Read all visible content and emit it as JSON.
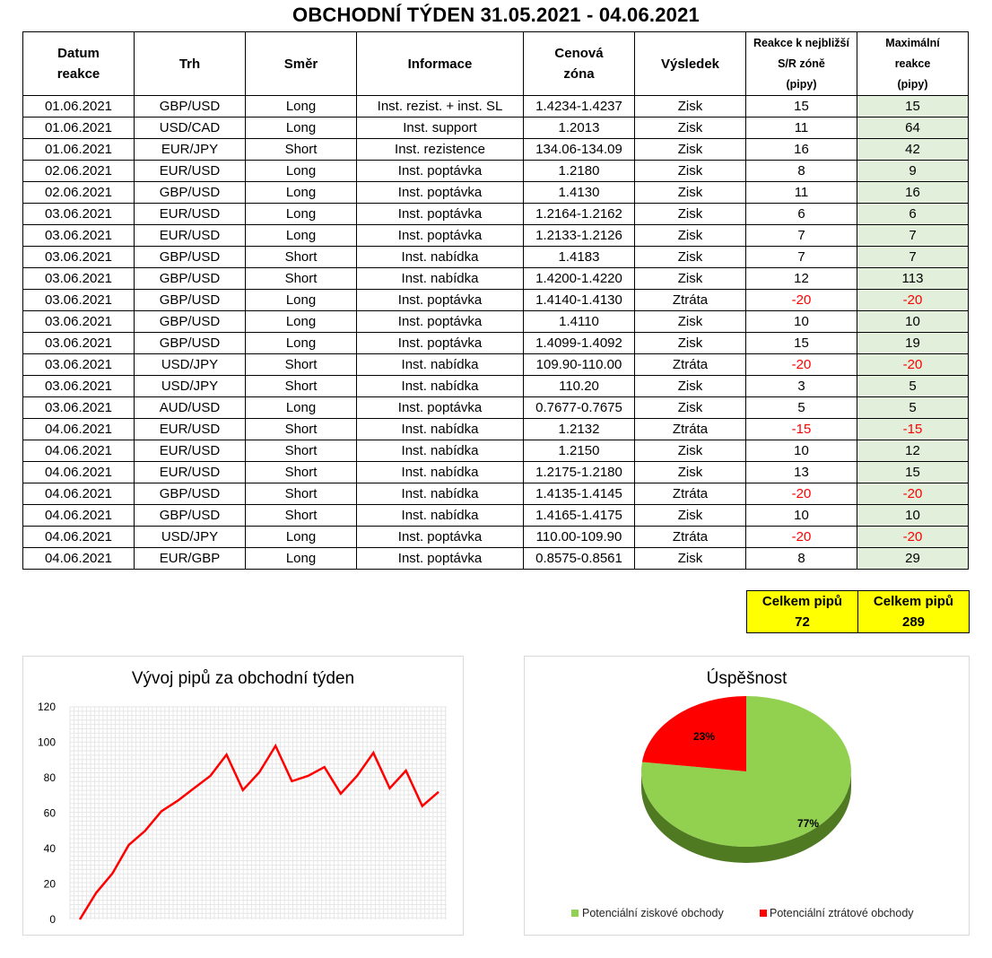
{
  "title": "OBCHODNÍ TÝDEN 31.05.2021 - 04.06.2021",
  "table": {
    "headers": {
      "date": [
        "Datum",
        "reakce"
      ],
      "market": "Trh",
      "direction": "Směr",
      "info": "Informace",
      "zone": [
        "Cenová",
        "zóna"
      ],
      "result": "Výsledek",
      "reaction": [
        "Reakce k nejbližší",
        "S/R zóně",
        "(pipy)"
      ],
      "max": [
        "Maximální",
        "reakce",
        "(pipy)"
      ]
    },
    "rows": [
      [
        "01.06.2021",
        "GBP/USD",
        "Long",
        "Inst. rezist. + inst. SL",
        "1.4234-1.4237",
        "Zisk",
        "15",
        "15"
      ],
      [
        "01.06.2021",
        "USD/CAD",
        "Long",
        "Inst. support",
        "1.2013",
        "Zisk",
        "11",
        "64"
      ],
      [
        "01.06.2021",
        "EUR/JPY",
        "Short",
        "Inst. rezistence",
        "134.06-134.09",
        "Zisk",
        "16",
        "42"
      ],
      [
        "02.06.2021",
        "EUR/USD",
        "Long",
        "Inst. poptávka",
        "1.2180",
        "Zisk",
        "8",
        "9"
      ],
      [
        "02.06.2021",
        "GBP/USD",
        "Long",
        "Inst. poptávka",
        "1.4130",
        "Zisk",
        "11",
        "16"
      ],
      [
        "03.06.2021",
        "EUR/USD",
        "Long",
        "Inst. poptávka",
        "1.2164-1.2162",
        "Zisk",
        "6",
        "6"
      ],
      [
        "03.06.2021",
        "EUR/USD",
        "Long",
        "Inst. poptávka",
        "1.2133-1.2126",
        "Zisk",
        "7",
        "7"
      ],
      [
        "03.06.2021",
        "GBP/USD",
        "Short",
        "Inst. nabídka",
        "1.4183",
        "Zisk",
        "7",
        "7"
      ],
      [
        "03.06.2021",
        "GBP/USD",
        "Short",
        "Inst. nabídka",
        "1.4200-1.4220",
        "Zisk",
        "12",
        "113"
      ],
      [
        "03.06.2021",
        "GBP/USD",
        "Long",
        "Inst. poptávka",
        "1.4140-1.4130",
        "Ztráta",
        "-20",
        "-20"
      ],
      [
        "03.06.2021",
        "GBP/USD",
        "Long",
        "Inst. poptávka",
        "1.4110",
        "Zisk",
        "10",
        "10"
      ],
      [
        "03.06.2021",
        "GBP/USD",
        "Long",
        "Inst. poptávka",
        "1.4099-1.4092",
        "Zisk",
        "15",
        "19"
      ],
      [
        "03.06.2021",
        "USD/JPY",
        "Short",
        "Inst. nabídka",
        "109.90-110.00",
        "Ztráta",
        "-20",
        "-20"
      ],
      [
        "03.06.2021",
        "USD/JPY",
        "Short",
        "Inst. nabídka",
        "110.20",
        "Zisk",
        "3",
        "5"
      ],
      [
        "03.06.2021",
        "AUD/USD",
        "Long",
        "Inst. poptávka",
        "0.7677-0.7675",
        "Zisk",
        "5",
        "5"
      ],
      [
        "04.06.2021",
        "EUR/USD",
        "Short",
        "Inst. nabídka",
        "1.2132",
        "Ztráta",
        "-15",
        "-15"
      ],
      [
        "04.06.2021",
        "EUR/USD",
        "Short",
        "Inst. nabídka",
        "1.2150",
        "Zisk",
        "10",
        "12"
      ],
      [
        "04.06.2021",
        "EUR/USD",
        "Short",
        "Inst. nabídka",
        "1.2175-1.2180",
        "Zisk",
        "13",
        "15"
      ],
      [
        "04.06.2021",
        "GBP/USD",
        "Short",
        "Inst. nabídka",
        "1.4135-1.4145",
        "Ztráta",
        "-20",
        "-20"
      ],
      [
        "04.06.2021",
        "GBP/USD",
        "Short",
        "Inst. nabídka",
        "1.4165-1.4175",
        "Zisk",
        "10",
        "10"
      ],
      [
        "04.06.2021",
        "USD/JPY",
        "Long",
        "Inst. poptávka",
        "110.00-109.90",
        "Ztráta",
        "-20",
        "-20"
      ],
      [
        "04.06.2021",
        "EUR/GBP",
        "Long",
        "Inst. poptávka",
        "0.8575-0.8561",
        "Zisk",
        "8",
        "29"
      ]
    ]
  },
  "totals": [
    {
      "label": "Celkem pipů",
      "value": "72"
    },
    {
      "label": "Celkem pipů",
      "value": "289"
    }
  ],
  "colors": {
    "max_column_fill": "#e2efda",
    "negative": "#ff0000",
    "totals_fill": "#ffff00",
    "line": "#ff0000",
    "pie_win": "#92d050",
    "pie_loss": "#ff0000"
  },
  "chart_data": [
    {
      "type": "line",
      "title": "Vývoj pipů za obchodní týden",
      "ylim": [
        0,
        120
      ],
      "yticks": [
        0,
        20,
        40,
        60,
        80,
        100,
        120
      ],
      "grid": true,
      "series": [
        {
          "values": [
            0,
            15,
            26,
            42,
            50,
            61,
            67,
            74,
            81,
            93,
            73,
            83,
            98,
            78,
            81,
            86,
            71,
            81,
            94,
            74,
            84,
            64,
            72
          ]
        }
      ]
    },
    {
      "type": "pie",
      "title": "Úspěšnost",
      "slices": [
        {
          "name": "Potenciální ziskové obchody",
          "value": 77,
          "label": "77%"
        },
        {
          "name": "Potenciální ztrátové obchody",
          "value": 23,
          "label": "23%"
        }
      ],
      "legend": "bottom"
    }
  ]
}
